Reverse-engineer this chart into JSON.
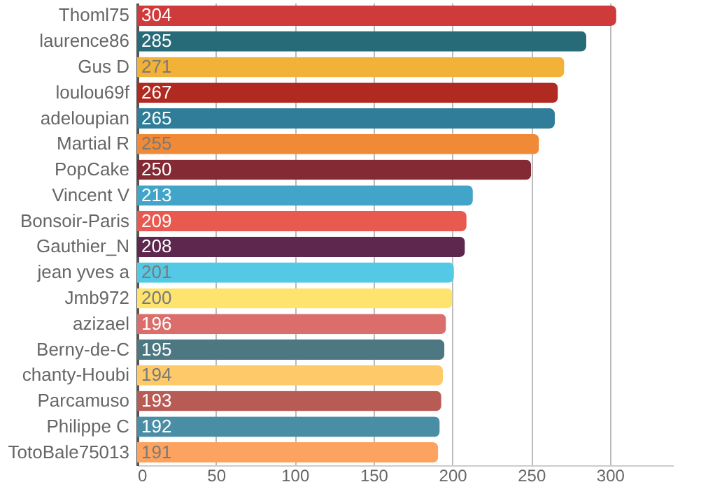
{
  "chart_data": {
    "type": "bar",
    "orientation": "horizontal",
    "categories": [
      "Thoml75",
      "laurence86",
      "Gus D",
      "loulou69f",
      "adeloupian",
      "Martial R",
      "PopCake",
      "Vincent V",
      "Bonsoir-Paris",
      "Gauthier_N",
      "jean yves a",
      "Jmb972",
      "azizael",
      "Berny-de-C",
      "chanty-Houbi",
      "Parcamuso",
      "Philippe C",
      "TotoBale75013"
    ],
    "values": [
      304,
      285,
      271,
      267,
      265,
      255,
      250,
      213,
      209,
      208,
      201,
      200,
      196,
      195,
      194,
      193,
      192,
      191
    ],
    "colors": [
      "#cf3a3a",
      "#286b78",
      "#f2b137",
      "#b02a22",
      "#2f7d99",
      "#f08a36",
      "#832a34",
      "#42a4c8",
      "#e85a4f",
      "#5e274e",
      "#53c9e6",
      "#fee36e",
      "#db6e6b",
      "#4d7882",
      "#fec968",
      "#b85b55",
      "#4a8ea6",
      "#fea35f"
    ],
    "xlim": [
      0,
      340
    ],
    "xticks": [
      0,
      50,
      100,
      150,
      200,
      250,
      300
    ],
    "grid": "x",
    "data_labels": true
  }
}
